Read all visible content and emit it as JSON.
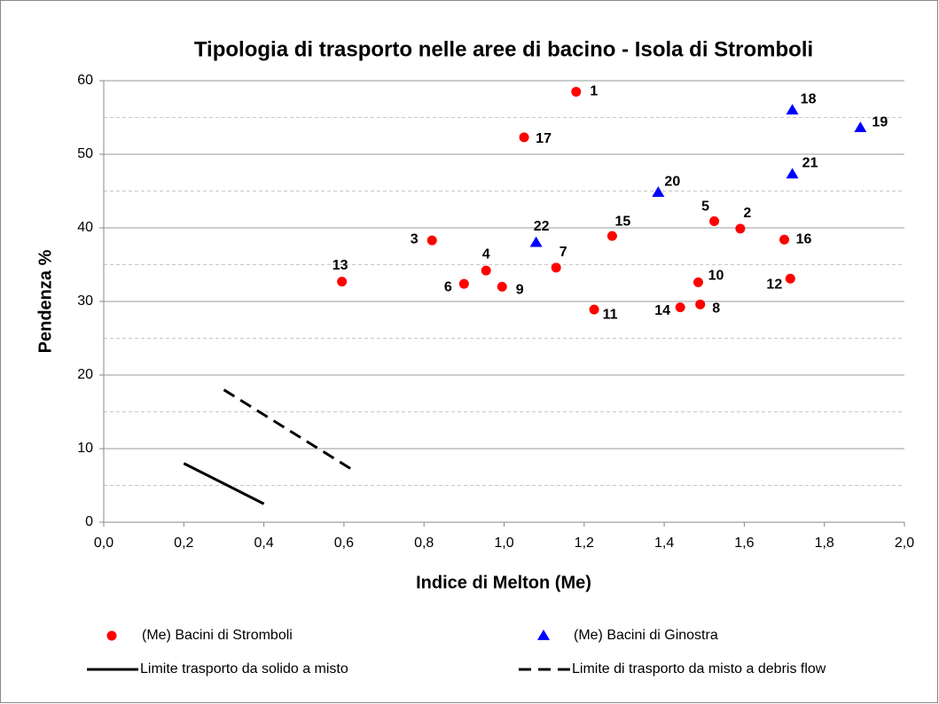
{
  "chart_data": {
    "type": "scatter",
    "title": "Tipologia di trasporto nelle aree di bacino - Isola di Stromboli",
    "xlabel": "Indice di Melton (Me)",
    "ylabel": "Pendenza  %",
    "xlim": [
      0,
      2
    ],
    "xticks": [
      {
        "value": 0,
        "label": "0,0"
      },
      {
        "value": 0.2,
        "label": "0,2"
      },
      {
        "value": 0.4,
        "label": "0,4"
      },
      {
        "value": 0.6,
        "label": "0,6"
      },
      {
        "value": 0.8,
        "label": "0,8"
      },
      {
        "value": 1,
        "label": "1,0"
      },
      {
        "value": 1.2,
        "label": "1,2"
      },
      {
        "value": 1.4,
        "label": "1,4"
      },
      {
        "value": 1.6,
        "label": "1,6"
      },
      {
        "value": 1.8,
        "label": "1,8"
      },
      {
        "value": 2,
        "label": "2,0"
      }
    ],
    "ylim": [
      0,
      60
    ],
    "yticks": [
      0,
      10,
      20,
      30,
      40,
      50,
      60
    ],
    "yminorticks": [
      5,
      15,
      25,
      35,
      45,
      55
    ],
    "grid": true,
    "series": [
      {
        "name": "(Me) Bacini di Stromboli",
        "kind": "points",
        "marker": "circle",
        "color": "#ff0000",
        "x": [
          1.18,
          1.59,
          0.82,
          0.955,
          1.525,
          0.9,
          1.13,
          1.49,
          0.995,
          1.485,
          1.225,
          1.715,
          0.595,
          1.44,
          1.27,
          1.7,
          1.05
        ],
        "values": [
          58.5,
          39.9,
          38.3,
          34.2,
          40.9,
          32.4,
          34.6,
          29.6,
          32.0,
          32.6,
          28.9,
          33.1,
          32.7,
          29.2,
          38.9,
          38.4,
          52.3
        ],
        "point_labels": [
          "1",
          "2",
          "3",
          "4",
          "5",
          "6",
          "7",
          "8",
          "9",
          "10",
          "11",
          "12",
          "13",
          "14",
          "15",
          "16",
          "17"
        ]
      },
      {
        "name": "(Me) Bacini di Ginostra",
        "kind": "points",
        "marker": "triangle",
        "color": "#0000ff",
        "x": [
          1.72,
          1.89,
          1.385,
          1.72,
          1.08
        ],
        "values": [
          56.0,
          53.6,
          44.8,
          47.3,
          38.0
        ],
        "point_labels": [
          "18",
          "19",
          "20",
          "21",
          "22"
        ]
      },
      {
        "name": "Limite trasporto da solido a misto",
        "kind": "line",
        "style": "solid",
        "color": "#000000",
        "x": [
          0.2,
          0.4
        ],
        "values": [
          8,
          2.5
        ]
      },
      {
        "name": "Limite di trasporto da misto a debris flow",
        "kind": "line",
        "style": "dashed",
        "color": "#000000",
        "x": [
          0.3,
          0.625
        ],
        "values": [
          18,
          7
        ]
      }
    ]
  }
}
